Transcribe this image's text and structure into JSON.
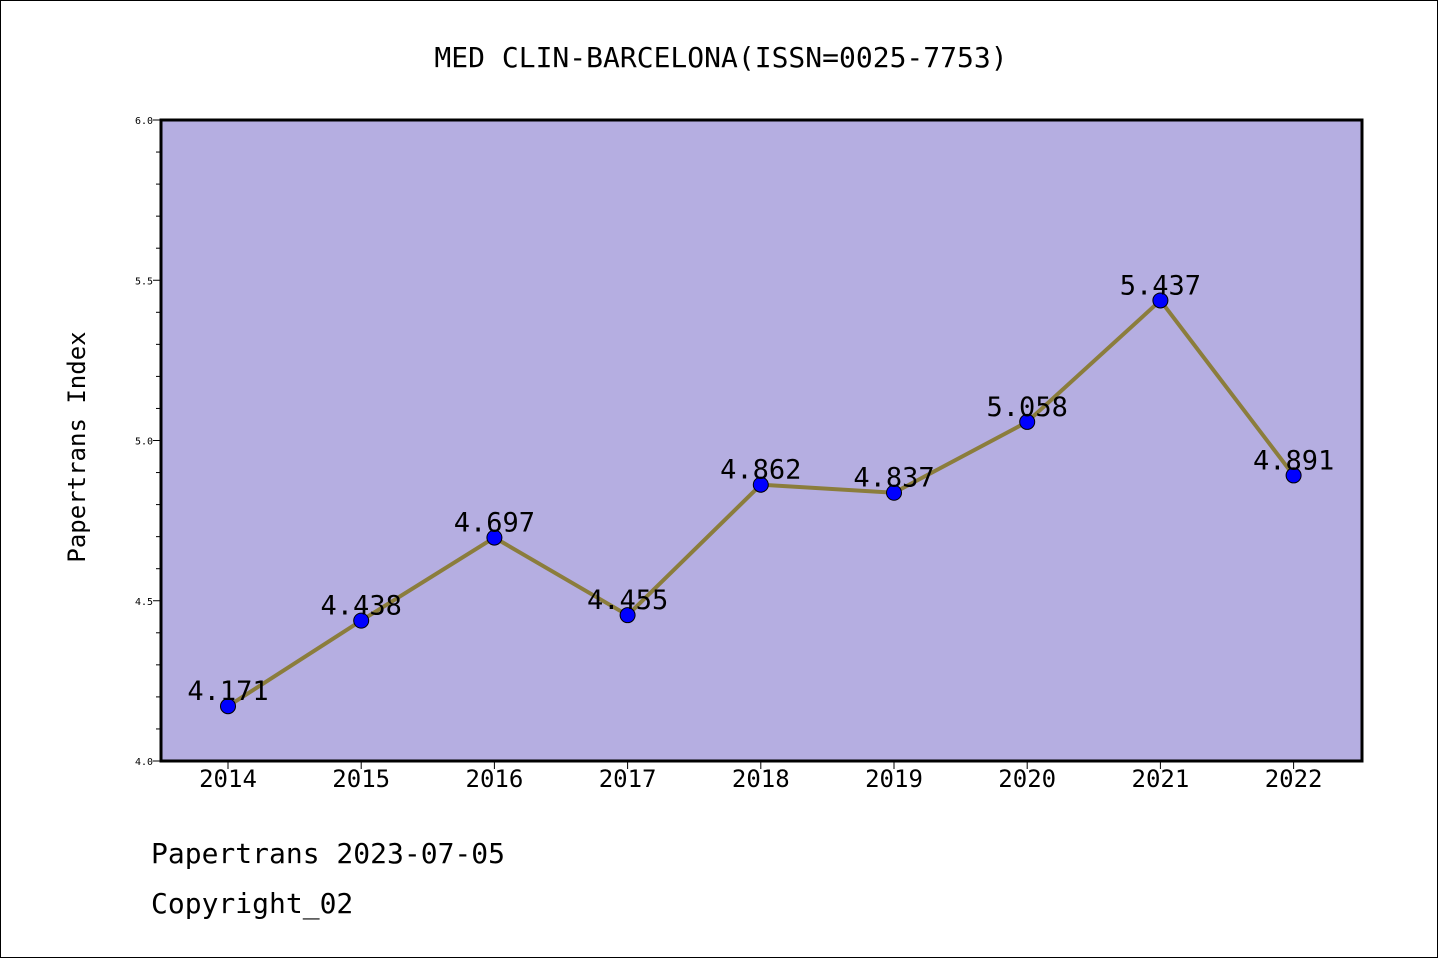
{
  "chart_data": {
    "type": "line",
    "title": "MED CLIN-BARCELONA(ISSN=0025-7753)",
    "xlabel": "",
    "ylabel": "Papertrans Index",
    "categories": [
      "2014",
      "2015",
      "2016",
      "2017",
      "2018",
      "2019",
      "2020",
      "2021",
      "2022"
    ],
    "values": [
      4.171,
      4.438,
      4.697,
      4.455,
      4.862,
      4.837,
      5.058,
      5.437,
      4.891
    ],
    "data_labels": [
      "4.171",
      "4.438",
      "4.697",
      "4.455",
      "4.862",
      "4.837",
      "5.058",
      "5.437",
      "4.891"
    ],
    "ylim": [
      4.0,
      6.0
    ],
    "yticks": [
      "4.0",
      "4.5",
      "5.0",
      "5.5",
      "6.0"
    ],
    "grid": false,
    "colors": {
      "plot_background": "#b5aee1",
      "line": "#8b7d3c",
      "marker": "#0000ff"
    }
  },
  "footer": {
    "line1": "Papertrans 2023-07-05",
    "line2": "Copyright_02"
  }
}
